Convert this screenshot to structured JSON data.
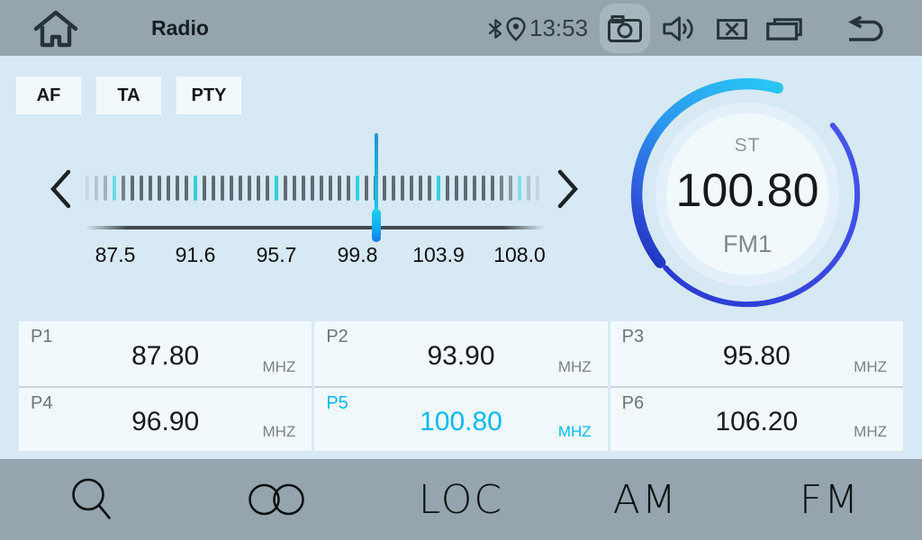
{
  "top_bar": {
    "title": "Radio",
    "time": "13:53",
    "icons": [
      "home",
      "bluetooth",
      "location",
      "camera",
      "volume",
      "close-window",
      "recent-apps",
      "back"
    ]
  },
  "band_buttons": [
    {
      "label": "AF"
    },
    {
      "label": "TA"
    },
    {
      "label": "PTY"
    }
  ],
  "tuner": {
    "stereo_label": "ST",
    "frequency": "100.80",
    "band": "FM1",
    "scale_labels": [
      "87.5",
      "91.6",
      "95.7",
      "99.8",
      "103.9",
      "108.0"
    ],
    "range_min": "87.5",
    "range_max": "108.0",
    "ticks": {
      "count": 51,
      "accent_start": 3,
      "accent_every": 9
    }
  },
  "presets": [
    {
      "id": "P1",
      "frequency": "87.80",
      "unit": "MHZ",
      "active": false
    },
    {
      "id": "P2",
      "frequency": "93.90",
      "unit": "MHZ",
      "active": false
    },
    {
      "id": "P3",
      "frequency": "95.80",
      "unit": "MHZ",
      "active": false
    },
    {
      "id": "P4",
      "frequency": "96.90",
      "unit": "MHZ",
      "active": false
    },
    {
      "id": "P5",
      "frequency": "100.80",
      "unit": "MHZ",
      "active": true
    },
    {
      "id": "P6",
      "frequency": "106.20",
      "unit": "MHZ",
      "active": false
    }
  ],
  "bottom_bar": {
    "items": [
      {
        "name": "search",
        "type": "icon"
      },
      {
        "name": "preset-scan",
        "type": "icon"
      },
      {
        "label": "LOC"
      },
      {
        "label": "AM"
      },
      {
        "label": "FM"
      }
    ]
  },
  "colors": {
    "bar_bg": "#95a4ad",
    "main_bg": "#d7e9f4",
    "panel_bg": "#f2f9fd",
    "accent_cyan": "#00b9ee",
    "tick_gray": "#5e6c72",
    "tick_accent": "#2ed3d8",
    "pointer_blue": "#1478f0",
    "arc_cyan": "#29c8f5",
    "arc_indigo": "#3a49e0"
  }
}
